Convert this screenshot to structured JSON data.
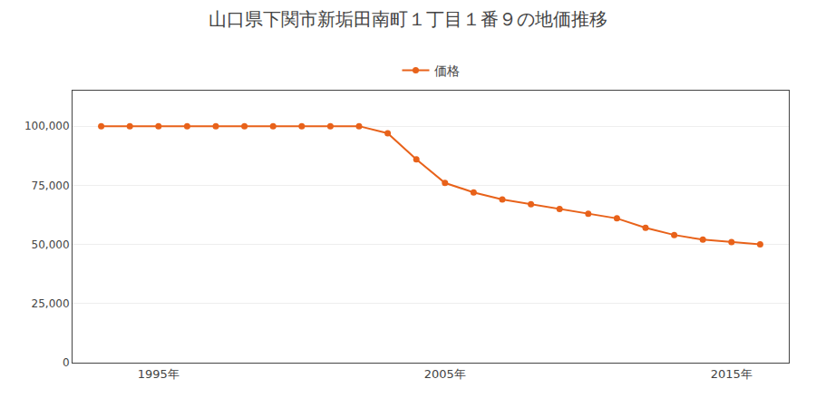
{
  "chart_data": {
    "type": "line",
    "title": "山口県下関市新垢田南町１丁目１番９の地価推移",
    "x": [
      1993,
      1994,
      1995,
      1996,
      1997,
      1998,
      1999,
      2000,
      2001,
      2002,
      2003,
      2004,
      2005,
      2006,
      2007,
      2008,
      2009,
      2010,
      2011,
      2012,
      2013,
      2014,
      2015,
      2016
    ],
    "series": [
      {
        "name": "価格",
        "color": "#e8621a",
        "marker": "circle",
        "values": [
          100000,
          100000,
          100000,
          100000,
          100000,
          100000,
          100000,
          100000,
          100000,
          100000,
          97000,
          86000,
          76000,
          72000,
          69000,
          67000,
          65000,
          63000,
          61000,
          57000,
          54000,
          52000,
          51000,
          50000
        ]
      }
    ],
    "xlim": [
      1992,
      2017
    ],
    "xticks": [
      {
        "value": 1995,
        "label": "1995年"
      },
      {
        "value": 2005,
        "label": "2005年"
      },
      {
        "value": 2015,
        "label": "2015年"
      }
    ],
    "ylim": [
      0,
      115000
    ],
    "yticks": [
      0,
      {
        "value": 25000,
        "label": "25,000"
      },
      {
        "value": 50000,
        "label": "50,000"
      },
      {
        "value": 75000,
        "label": "75,000"
      },
      {
        "value": 100000,
        "label": "100,000"
      }
    ],
    "grid": true,
    "legend": "top"
  }
}
